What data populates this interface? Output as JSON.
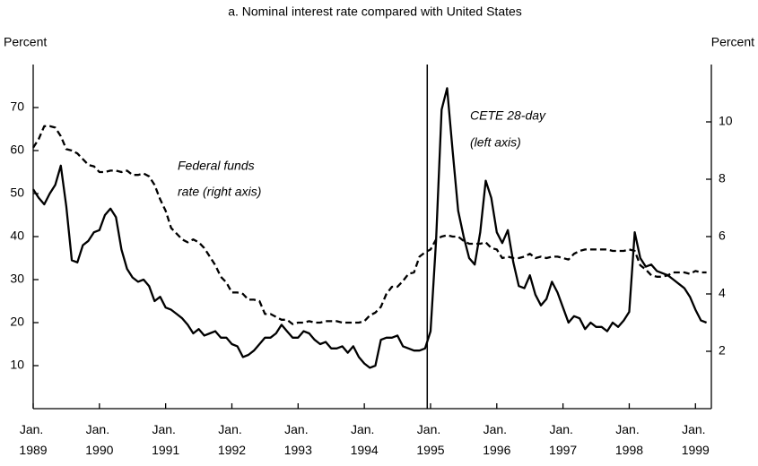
{
  "chart_data": {
    "type": "line",
    "title": "a. Nominal interest rate compared with United States",
    "y_label": "Percent",
    "y2_label": "Percent",
    "annotations": [
      "Federal funds",
      "rate (right axis)",
      "CETE 28-day",
      "(left axis)"
    ],
    "x": [
      1989,
      1989.083,
      1989.167,
      1989.25,
      1989.333,
      1989.417,
      1989.5,
      1989.583,
      1989.667,
      1989.75,
      1989.833,
      1989.917,
      1990,
      1990.083,
      1990.167,
      1990.25,
      1990.333,
      1990.417,
      1990.5,
      1990.583,
      1990.667,
      1990.75,
      1990.833,
      1990.917,
      1991,
      1991.083,
      1991.167,
      1991.25,
      1991.333,
      1991.417,
      1991.5,
      1991.583,
      1991.667,
      1991.75,
      1991.833,
      1991.917,
      1992,
      1992.083,
      1992.167,
      1992.25,
      1992.333,
      1992.417,
      1992.5,
      1992.583,
      1992.667,
      1992.75,
      1992.833,
      1992.917,
      1993,
      1993.083,
      1993.167,
      1993.25,
      1993.333,
      1993.417,
      1993.5,
      1993.583,
      1993.667,
      1993.75,
      1993.833,
      1993.917,
      1994,
      1994.083,
      1994.167,
      1994.25,
      1994.333,
      1994.417,
      1994.5,
      1994.583,
      1994.667,
      1994.75,
      1994.833,
      1994.917,
      1995,
      1995.083,
      1995.167,
      1995.25,
      1995.333,
      1995.417,
      1995.5,
      1995.583,
      1995.667,
      1995.75,
      1995.833,
      1995.917,
      1996,
      1996.083,
      1996.167,
      1996.25,
      1996.333,
      1996.417,
      1996.5,
      1996.583,
      1996.667,
      1996.75,
      1996.833,
      1996.917,
      1997,
      1997.083,
      1997.167,
      1997.25,
      1997.333,
      1997.417,
      1997.5,
      1997.583,
      1997.667,
      1997.75,
      1997.833,
      1997.917,
      1998,
      1998.083,
      1998.167,
      1998.25,
      1998.333,
      1998.417,
      1998.5,
      1998.583,
      1998.667,
      1998.75,
      1998.833,
      1998.917,
      1999,
      1999.083,
      1999.167
    ],
    "series": [
      {
        "color": "#000000",
        "axis": "y",
        "linestyle": "solid",
        "values": [
          51,
          49,
          47.5,
          50,
          52,
          56.5,
          47,
          34.5,
          34,
          38,
          39,
          41,
          41.5,
          45,
          46.5,
          44.5,
          37,
          32.5,
          30.5,
          29.5,
          30,
          28.5,
          25,
          26,
          23.5,
          23,
          22,
          21,
          19.5,
          17.5,
          18.5,
          17,
          17.5,
          18,
          16.5,
          16.5,
          15,
          14.5,
          12,
          12.5,
          13.5,
          15,
          16.5,
          16.5,
          17.5,
          19.5,
          18,
          16.5,
          16.5,
          18,
          17.5,
          16,
          15,
          15.5,
          14,
          14,
          14.5,
          13,
          14.5,
          12,
          10.5,
          9.5,
          10,
          16,
          16.5,
          16.5,
          17,
          14.5,
          14,
          13.5,
          13.5,
          14,
          18,
          39,
          69.5,
          74.5,
          60,
          46,
          40,
          35,
          33.5,
          41,
          53,
          49,
          41,
          38.5,
          41.5,
          34,
          28.5,
          28,
          31,
          26.5,
          24,
          25.5,
          29.5,
          27,
          23.5,
          20,
          21.5,
          21,
          18.5,
          20,
          19,
          19,
          18,
          20,
          19,
          20.5,
          22.5,
          41,
          35,
          33,
          33.5,
          32,
          31.5,
          31,
          30,
          29,
          28,
          26,
          23,
          20.5,
          20
        ]
      },
      {
        "color": "#000000",
        "axis": "y2",
        "linestyle": "dashed",
        "values": [
          9.1,
          9.4,
          9.85,
          9.85,
          9.8,
          9.5,
          9.05,
          9.0,
          8.9,
          8.7,
          8.5,
          8.45,
          8.25,
          8.25,
          8.3,
          8.3,
          8.25,
          8.3,
          8.15,
          8.15,
          8.2,
          8.1,
          7.8,
          7.3,
          6.9,
          6.3,
          6.1,
          5.9,
          5.8,
          5.9,
          5.8,
          5.6,
          5.3,
          5.0,
          4.6,
          4.4,
          4.05,
          4.05,
          4.0,
          3.8,
          3.8,
          3.75,
          3.3,
          3.3,
          3.2,
          3.1,
          3.1,
          2.95,
          3.0,
          3.0,
          3.05,
          3.0,
          3.0,
          3.05,
          3.05,
          3.05,
          3.0,
          3.0,
          3.0,
          3.0,
          3.05,
          3.25,
          3.35,
          3.55,
          4.0,
          4.25,
          4.25,
          4.45,
          4.7,
          4.75,
          5.3,
          5.45,
          5.55,
          5.9,
          6.0,
          6.05,
          6.0,
          6.0,
          5.85,
          5.75,
          5.75,
          5.75,
          5.8,
          5.6,
          5.55,
          5.25,
          5.3,
          5.25,
          5.25,
          5.3,
          5.4,
          5.25,
          5.3,
          5.25,
          5.3,
          5.3,
          5.25,
          5.2,
          5.4,
          5.5,
          5.55,
          5.55,
          5.55,
          5.55,
          5.55,
          5.5,
          5.5,
          5.5,
          5.55,
          5.5,
          5.0,
          4.85,
          4.65,
          4.6,
          4.6,
          4.65,
          4.75,
          4.75,
          4.75,
          4.7,
          4.8,
          4.75,
          4.75
        ]
      }
    ],
    "vline": 1994.95,
    "xlim": [
      1989,
      1999.24
    ],
    "xticks": [
      {
        "value": 1989,
        "label": "Jan.\n1989"
      },
      {
        "value": 1990,
        "label": "Jan.\n1990"
      },
      {
        "value": 1991,
        "label": "Jan.\n1991"
      },
      {
        "value": 1992,
        "label": "Jan.\n1992"
      },
      {
        "value": 1993,
        "label": "Jan.\n1993"
      },
      {
        "value": 1994,
        "label": "Jan.\n1994"
      },
      {
        "value": 1995,
        "label": "Jan.\n1995"
      },
      {
        "value": 1996,
        "label": "Jan.\n1996"
      },
      {
        "value": 1997,
        "label": "Jan.\n1997"
      },
      {
        "value": 1998,
        "label": "Jan.\n1998"
      },
      {
        "value": 1999,
        "label": "Jan.\n1999"
      }
    ],
    "ylim": [
      0,
      80
    ],
    "yticks": [
      10,
      20,
      30,
      40,
      50,
      60,
      70
    ],
    "y2lim": [
      0,
      12
    ],
    "y2ticks": [
      2,
      4,
      6,
      8,
      10
    ],
    "grid": false
  }
}
